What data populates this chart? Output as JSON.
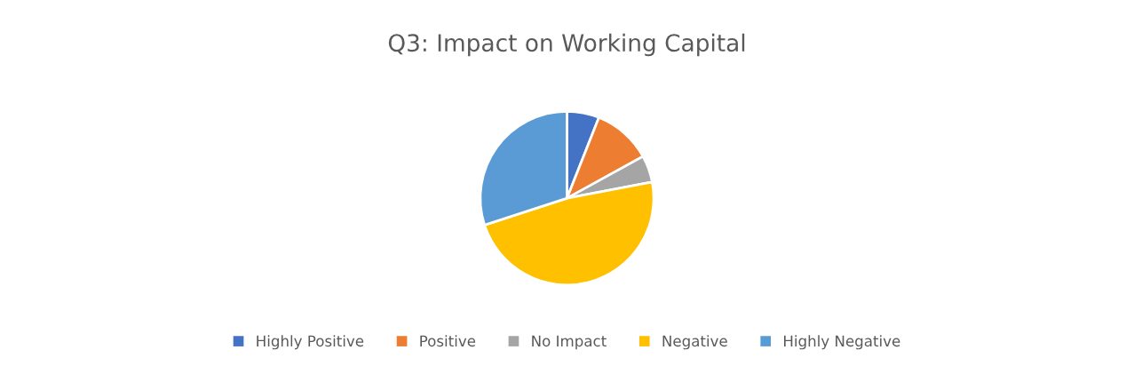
{
  "chart_data": {
    "type": "pie",
    "title": "Q3: Impact on Working Capital",
    "categories": [
      "Highly Positive",
      "Positive",
      "No Impact",
      "Negative",
      "Highly Negative"
    ],
    "values": [
      6,
      11,
      5,
      48,
      30
    ],
    "colors": [
      "#4472c4",
      "#ed7d31",
      "#a5a5a5",
      "#ffc000",
      "#5b9bd5"
    ],
    "legend": "bottom"
  }
}
